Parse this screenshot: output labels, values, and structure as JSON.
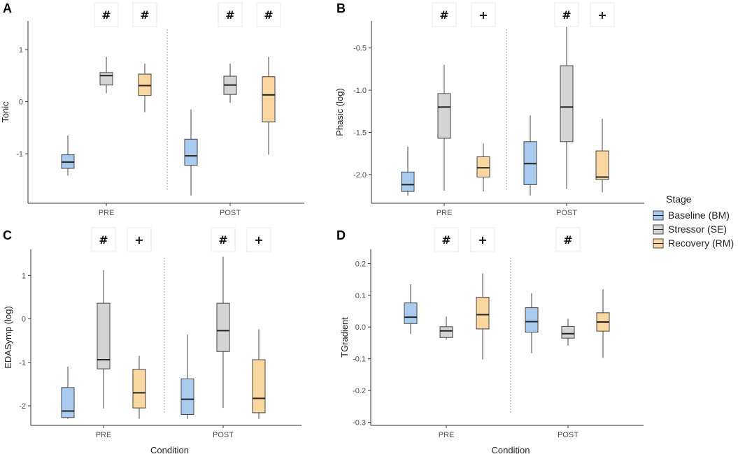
{
  "chart_data": [
    {
      "panel": "A",
      "type": "box",
      "ylabel": "Tonic",
      "xlabel": "",
      "ylim": [
        -1.95,
        1.55
      ],
      "yticks": [
        -1,
        0,
        1
      ],
      "ytick_labels": [
        "-1",
        "0",
        "1"
      ],
      "categories": [
        "PRE",
        "POST"
      ],
      "series": [
        {
          "name": "Baseline (BM)",
          "boxes": [
            {
              "min": -1.42,
              "q1": -1.28,
              "median": -1.16,
              "q3": -1.02,
              "max": -0.65
            },
            {
              "min": -1.8,
              "q1": -1.22,
              "median": -1.04,
              "q3": -0.72,
              "max": -0.15
            }
          ]
        },
        {
          "name": "Stressor (SE)",
          "boxes": [
            {
              "min": 0.16,
              "q1": 0.32,
              "median": 0.5,
              "q3": 0.56,
              "max": 0.86
            },
            {
              "min": -0.02,
              "q1": 0.14,
              "median": 0.32,
              "q3": 0.49,
              "max": 0.73
            }
          ]
        },
        {
          "name": "Recovery (RM)",
          "boxes": [
            {
              "min": -0.2,
              "q1": 0.12,
              "median": 0.31,
              "q3": 0.53,
              "max": 0.73
            },
            {
              "min": -1.02,
              "q1": -0.39,
              "median": 0.13,
              "q3": 0.48,
              "max": 0.86
            }
          ]
        }
      ],
      "annotations": [
        {
          "condition": "PRE",
          "stage": "Stressor (SE)",
          "text": "#"
        },
        {
          "condition": "PRE",
          "stage": "Recovery (RM)",
          "text": "#"
        },
        {
          "condition": "POST",
          "stage": "Stressor (SE)",
          "text": "#"
        },
        {
          "condition": "POST",
          "stage": "Recovery (RM)",
          "text": "#"
        }
      ]
    },
    {
      "panel": "B",
      "type": "box",
      "ylabel": "Phasic (log)",
      "xlabel": "",
      "ylim": [
        -2.34,
        -0.18
      ],
      "yticks": [
        -2.0,
        -1.5,
        -1.0,
        -0.5
      ],
      "ytick_labels": [
        "-2.0",
        "-1.5",
        "-1.0",
        "-0.5"
      ],
      "categories": [
        "PRE",
        "POST"
      ],
      "series": [
        {
          "name": "Baseline (BM)",
          "boxes": [
            {
              "min": -2.25,
              "q1": -2.2,
              "median": -2.12,
              "q3": -1.97,
              "max": -1.67
            },
            {
              "min": -2.25,
              "q1": -2.12,
              "median": -1.87,
              "q3": -1.61,
              "max": -1.3
            }
          ]
        },
        {
          "name": "Stressor (SE)",
          "boxes": [
            {
              "min": -2.19,
              "q1": -1.57,
              "median": -1.2,
              "q3": -1.04,
              "max": -0.7
            },
            {
              "min": -2.17,
              "q1": -1.61,
              "median": -1.2,
              "q3": -0.71,
              "max": -0.21
            }
          ]
        },
        {
          "name": "Recovery (RM)",
          "boxes": [
            {
              "min": -2.2,
              "q1": -2.03,
              "median": -1.92,
              "q3": -1.79,
              "max": -1.63
            },
            {
              "min": -2.21,
              "q1": -2.06,
              "median": -2.03,
              "q3": -1.72,
              "max": -1.34
            }
          ]
        }
      ],
      "annotations": [
        {
          "condition": "PRE",
          "stage": "Stressor (SE)",
          "text": "#"
        },
        {
          "condition": "PRE",
          "stage": "Recovery (RM)",
          "text": "+"
        },
        {
          "condition": "POST",
          "stage": "Stressor (SE)",
          "text": "#"
        },
        {
          "condition": "POST",
          "stage": "Recovery (RM)",
          "text": "+"
        }
      ]
    },
    {
      "panel": "C",
      "type": "box",
      "ylabel": "EDASymp (log)",
      "xlabel": "Condition",
      "ylim": [
        -2.45,
        1.6
      ],
      "yticks": [
        -2,
        -1,
        0,
        1
      ],
      "ytick_labels": [
        "-2",
        "-1",
        "0",
        "1"
      ],
      "categories": [
        "PRE",
        "POST"
      ],
      "series": [
        {
          "name": "Baseline (BM)",
          "boxes": [
            {
              "min": -2.3,
              "q1": -2.27,
              "median": -2.12,
              "q3": -1.58,
              "max": -1.1
            },
            {
              "min": -2.3,
              "q1": -2.2,
              "median": -1.85,
              "q3": -1.38,
              "max": -0.36
            }
          ]
        },
        {
          "name": "Stressor (SE)",
          "boxes": [
            {
              "min": -2.06,
              "q1": -1.15,
              "median": -0.94,
              "q3": 0.36,
              "max": 1.12
            },
            {
              "min": -2.05,
              "q1": -0.75,
              "median": -0.27,
              "q3": 0.36,
              "max": 1.43
            }
          ]
        },
        {
          "name": "Recovery (RM)",
          "boxes": [
            {
              "min": -2.3,
              "q1": -2.05,
              "median": -1.7,
              "q3": -1.16,
              "max": -0.85
            },
            {
              "min": -2.3,
              "q1": -2.16,
              "median": -1.83,
              "q3": -0.94,
              "max": -0.24
            }
          ]
        }
      ],
      "annotations": [
        {
          "condition": "PRE",
          "stage": "Stressor (SE)",
          "text": "#"
        },
        {
          "condition": "PRE",
          "stage": "Recovery (RM)",
          "text": "+"
        },
        {
          "condition": "POST",
          "stage": "Stressor (SE)",
          "text": "#"
        },
        {
          "condition": "POST",
          "stage": "Recovery (RM)",
          "text": "+"
        }
      ]
    },
    {
      "panel": "D",
      "type": "box",
      "ylabel": "TGradient",
      "xlabel": "Condition",
      "ylim": [
        -0.31,
        0.245
      ],
      "yticks": [
        -0.3,
        -0.2,
        -0.1,
        0.0,
        0.1,
        0.2
      ],
      "ytick_labels": [
        "-0.3",
        "-0.2",
        "-0.1",
        "0.0",
        "0.1",
        "0.2"
      ],
      "categories": [
        "PRE",
        "POST"
      ],
      "series": [
        {
          "name": "Baseline (BM)",
          "boxes": [
            {
              "min": -0.022,
              "q1": 0.011,
              "median": 0.031,
              "q3": 0.076,
              "max": 0.135
            },
            {
              "min": -0.082,
              "q1": -0.016,
              "median": 0.017,
              "q3": 0.061,
              "max": 0.107
            }
          ]
        },
        {
          "name": "Stressor (SE)",
          "boxes": [
            {
              "min": -0.04,
              "q1": -0.033,
              "median": -0.012,
              "q3": 0.001,
              "max": 0.033
            },
            {
              "min": -0.058,
              "q1": -0.035,
              "median": -0.021,
              "q3": 0.002,
              "max": 0.026
            }
          ]
        },
        {
          "name": "Recovery (RM)",
          "boxes": [
            {
              "min": -0.102,
              "q1": -0.006,
              "median": 0.039,
              "q3": 0.094,
              "max": 0.169
            },
            {
              "min": -0.097,
              "q1": -0.013,
              "median": 0.016,
              "q3": 0.045,
              "max": 0.119
            }
          ]
        }
      ],
      "annotations": [
        {
          "condition": "PRE",
          "stage": "Stressor (SE)",
          "text": "#"
        },
        {
          "condition": "PRE",
          "stage": "Recovery (RM)",
          "text": "+"
        },
        {
          "condition": "POST",
          "stage": "Stressor (SE)",
          "text": "#"
        }
      ]
    }
  ],
  "legend": {
    "title": "Stage",
    "position": "right",
    "items": [
      {
        "label": "Baseline (BM)",
        "color": "#a9cbf0"
      },
      {
        "label": "Stressor (SE)",
        "color": "#d4d4d4"
      },
      {
        "label": "Recovery (RM)",
        "color": "#fad7a0"
      }
    ]
  },
  "colors": {
    "baseline": "#a9cbf0",
    "stressor": "#d4d4d4",
    "recovery": "#fad7a0",
    "box_stroke": "#444444",
    "separator": "#999999"
  }
}
